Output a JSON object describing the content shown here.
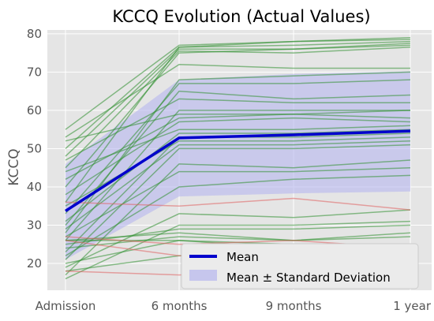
{
  "chart_data": {
    "type": "line",
    "title": "KCCQ Evolution (Actual Values)",
    "xlabel": "",
    "ylabel": "KCCQ",
    "categories": [
      "Admission",
      "6 months",
      "9 months",
      "1 year"
    ],
    "yticks": [
      20,
      30,
      40,
      50,
      60,
      70,
      80
    ],
    "ylim": [
      13,
      81
    ],
    "grid": true,
    "legend_position": "bottom-center",
    "legend": [
      {
        "label": "Mean",
        "kind": "line",
        "color": "#0000cc"
      },
      {
        "label": "Mean ± Standard Deviation",
        "kind": "band",
        "color": "#b6b6ee"
      }
    ],
    "mean": [
      33.7,
      52.8,
      53.6,
      54.6
    ],
    "std_band": {
      "lower": [
        21.0,
        37.5,
        38.3,
        38.8
      ],
      "upper": [
        46.0,
        68.0,
        69.5,
        70.2
      ]
    },
    "improved_color": "#2f8f2f",
    "declined_color": "#e06060",
    "patients": [
      {
        "trend": "improved",
        "values": [
          55,
          77,
          78,
          78.5
        ]
      },
      {
        "trend": "improved",
        "values": [
          50,
          76.5,
          77,
          78
        ]
      },
      {
        "trend": "improved",
        "values": [
          48,
          76,
          76,
          77
        ]
      },
      {
        "trend": "improved",
        "values": [
          45,
          75.5,
          75,
          76.5
        ]
      },
      {
        "trend": "improved",
        "values": [
          40,
          75,
          76,
          77.5
        ]
      },
      {
        "trend": "improved",
        "values": [
          36,
          76.5,
          78,
          79
        ]
      },
      {
        "trend": "improved",
        "values": [
          53,
          72,
          71,
          71
        ]
      },
      {
        "trend": "improved",
        "values": [
          28,
          68,
          69,
          70
        ]
      },
      {
        "trend": "improved",
        "values": [
          33,
          67,
          67,
          68
        ]
      },
      {
        "trend": "improved",
        "values": [
          30,
          65,
          63,
          64
        ]
      },
      {
        "trend": "improved",
        "values": [
          47,
          63,
          62,
          62
        ]
      },
      {
        "trend": "improved",
        "values": [
          26,
          60,
          60,
          60
        ]
      },
      {
        "trend": "improved",
        "values": [
          52,
          59,
          59,
          60
        ]
      },
      {
        "trend": "improved",
        "values": [
          42,
          58,
          59,
          58
        ]
      },
      {
        "trend": "improved",
        "values": [
          38,
          57,
          58,
          57
        ]
      },
      {
        "trend": "improved",
        "values": [
          44,
          55,
          55,
          56
        ]
      },
      {
        "trend": "improved",
        "values": [
          31,
          54,
          54,
          55
        ]
      },
      {
        "trend": "improved",
        "values": [
          23,
          53,
          53,
          54
        ]
      },
      {
        "trend": "improved",
        "values": [
          35,
          52,
          52,
          53
        ]
      },
      {
        "trend": "improved",
        "values": [
          29,
          51,
          51,
          52
        ]
      },
      {
        "trend": "improved",
        "values": [
          21,
          50,
          50,
          51
        ]
      },
      {
        "trend": "improved",
        "values": [
          17,
          46,
          45,
          47
        ]
      },
      {
        "trend": "improved",
        "values": [
          27,
          44,
          44,
          45
        ]
      },
      {
        "trend": "improved",
        "values": [
          22,
          40,
          42,
          43
        ]
      },
      {
        "trend": "improved",
        "values": [
          19,
          33,
          32,
          34
        ]
      },
      {
        "trend": "improved",
        "values": [
          16,
          30,
          30,
          31
        ]
      },
      {
        "trend": "improved",
        "values": [
          25,
          29,
          29,
          30
        ]
      },
      {
        "trend": "improved",
        "values": [
          26,
          28,
          26,
          27
        ]
      },
      {
        "trend": "improved",
        "values": [
          24,
          27,
          26,
          28
        ]
      },
      {
        "trend": "improved",
        "values": [
          20,
          26,
          25,
          25
        ]
      },
      {
        "trend": "improved",
        "values": [
          26,
          26,
          24,
          24
        ]
      },
      {
        "trend": "improved",
        "values": [
          18,
          22,
          22,
          23
        ]
      },
      {
        "trend": "declined",
        "values": [
          36,
          35,
          37,
          34
        ]
      },
      {
        "trend": "declined",
        "values": [
          27,
          25,
          26,
          24
        ]
      },
      {
        "trend": "declined",
        "values": [
          26,
          22,
          22,
          21
        ]
      },
      {
        "trend": "declined",
        "values": [
          18,
          17,
          18,
          18
        ]
      }
    ]
  }
}
